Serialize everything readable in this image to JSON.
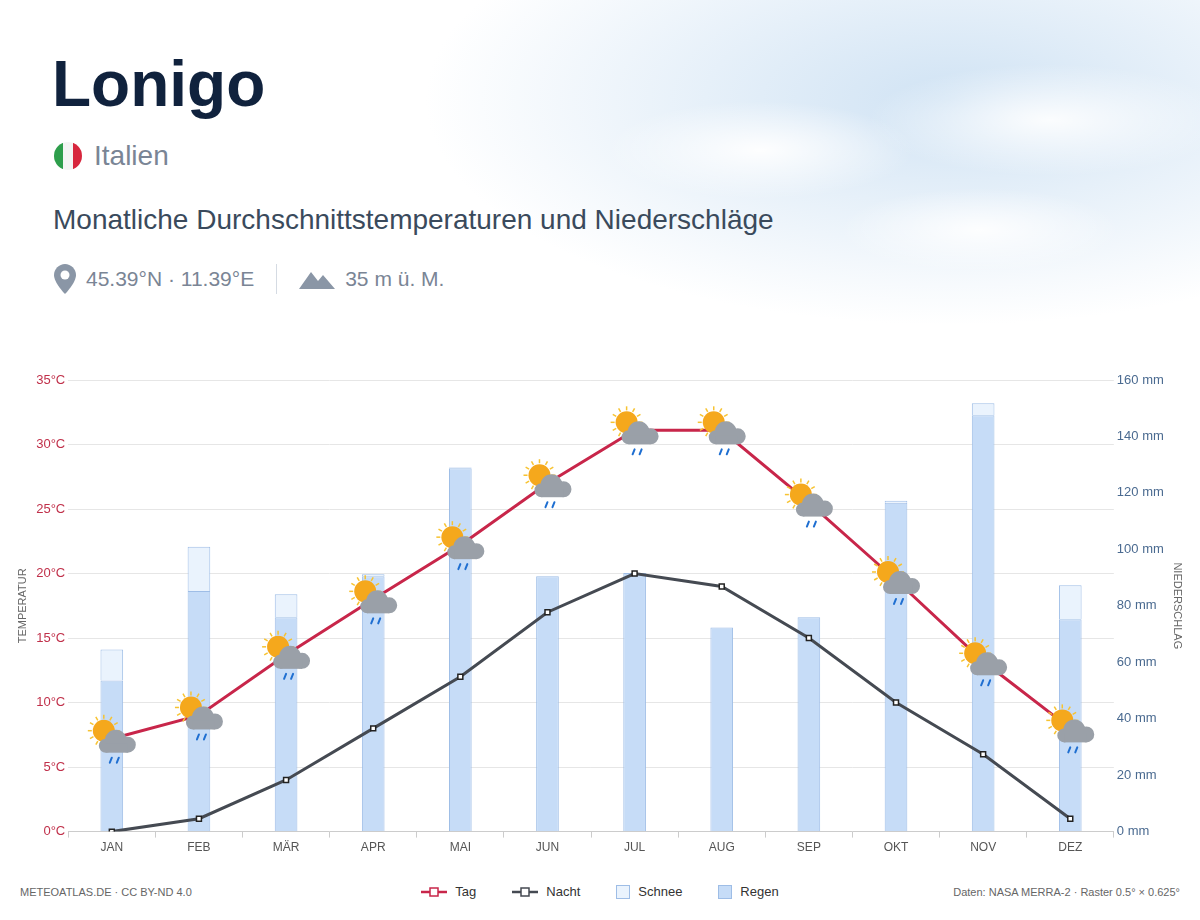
{
  "chart_data": {
    "type": "bar",
    "title": "Lonigo",
    "country": "Italien",
    "subtitle": "Monatliche Durchschnittstemperaturen und Niederschläge",
    "coordinates": "45.39°N · 11.39°E",
    "elevation": "35 m ü. M.",
    "y_label": "TEMPERATUR",
    "y2_label": "NIEDERSCHLAG",
    "source": "METEOATLAS.DE · CC BY-ND 4.0",
    "credits": "Daten: NASA MERRA-2 · Raster 0.5° × 0.625°",
    "categories": [
      "JAN",
      "FEB",
      "MÄR",
      "APR",
      "MAI",
      "JUN",
      "JUL",
      "AUG",
      "SEP",
      "OKT",
      "NOV",
      "DEZ"
    ],
    "series": [
      {
        "name": "Tag",
        "type": "line",
        "color": "#c8264a",
        "marker": "square",
        "line_style": "solid",
        "values": [
          7.2,
          9.0,
          13.7,
          18.0,
          22.2,
          27.0,
          31.1,
          31.1,
          25.5,
          19.5,
          13.2,
          8.0
        ]
      },
      {
        "name": "Nacht",
        "type": "line",
        "color": "#454a52",
        "marker": "square",
        "line_style": "solid",
        "values": [
          0,
          1.0,
          4.0,
          8.0,
          12.0,
          17.0,
          20.0,
          19.0,
          15.0,
          10.0,
          6.0,
          1.0
        ]
      },
      {
        "name": "Schnee",
        "type": "bar",
        "axis": "y2",
        "color": "#eaf3fd",
        "values": [
          11.0,
          15.7,
          8.2,
          0.7,
          0.3,
          0,
          0,
          0,
          0,
          0.7,
          4.3,
          12.1
        ]
      },
      {
        "name": "Regen",
        "type": "bar",
        "axis": "y2",
        "color": "#c6dcf7",
        "values": [
          53.5,
          85.2,
          75.9,
          90.5,
          128.7,
          90.5,
          91.6,
          72.3,
          75.9,
          116.5,
          147.5,
          75.2
        ]
      }
    ],
    "stacked": true,
    "grid": true,
    "legend": "bottom",
    "ylim": [
      0,
      35
    ],
    "yticks": [
      {
        "value": 0,
        "label": "0°C"
      },
      {
        "value": 5,
        "label": "5°C"
      },
      {
        "value": 10,
        "label": "10°C"
      },
      {
        "value": 15,
        "label": "15°C"
      },
      {
        "value": 20,
        "label": "20°C"
      },
      {
        "value": 25,
        "label": "25°C"
      },
      {
        "value": 30,
        "label": "30°C"
      },
      {
        "value": 35,
        "label": "35°C"
      }
    ],
    "y2lim": [
      0,
      160
    ],
    "y2ticks": [
      {
        "value": 0,
        "label": "0 mm"
      },
      {
        "value": 20,
        "label": "20 mm"
      },
      {
        "value": 40,
        "label": "40 mm"
      },
      {
        "value": 60,
        "label": "60 mm"
      },
      {
        "value": 80,
        "label": "80 mm"
      },
      {
        "value": 100,
        "label": "100 mm"
      },
      {
        "value": 120,
        "label": "120 mm"
      },
      {
        "value": 140,
        "label": "140 mm"
      },
      {
        "value": 160,
        "label": "160 mm"
      }
    ]
  }
}
